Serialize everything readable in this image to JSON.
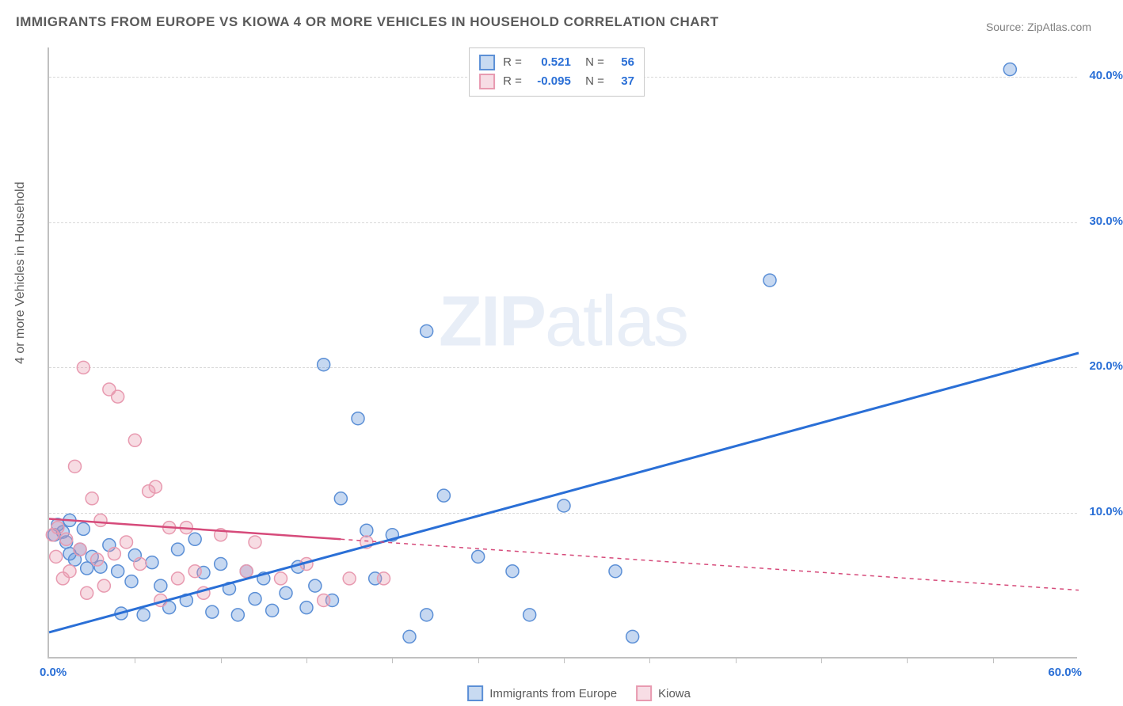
{
  "title": "IMMIGRANTS FROM EUROPE VS KIOWA 4 OR MORE VEHICLES IN HOUSEHOLD CORRELATION CHART",
  "source": "Source: ZipAtlas.com",
  "ylabel": "4 or more Vehicles in Household",
  "watermark_bold": "ZIP",
  "watermark_rest": "atlas",
  "chart": {
    "type": "scatter",
    "xlim": [
      0,
      60
    ],
    "ylim": [
      0,
      42
    ],
    "x_tick_start": 5,
    "x_tick_step": 5,
    "y_tick_start": 10,
    "y_tick_step": 10,
    "x_label_0": "0.0%",
    "x_label_end": "60.0%",
    "y_labels": [
      {
        "v": 10,
        "text": "10.0%"
      },
      {
        "v": 20,
        "text": "20.0%"
      },
      {
        "v": 30,
        "text": "30.0%"
      },
      {
        "v": 40,
        "text": "40.0%"
      }
    ],
    "background_color": "#ffffff",
    "grid_color": "#d8d8d8",
    "axis_color": "#c0c0c0",
    "marker_radius": 8,
    "marker_stroke_width": 1.5,
    "marker_fill_opacity": 0.35,
    "series": [
      {
        "name": "Immigrants from Europe",
        "color": "#5b8fd6",
        "line_color": "#2a6fd6",
        "R": "0.521",
        "N": "56",
        "trend": {
          "x1": 0,
          "y1": 1.8,
          "x2": 60,
          "y2": 21.0,
          "width": 3
        },
        "points": [
          [
            0.3,
            8.5
          ],
          [
            0.5,
            9.2
          ],
          [
            0.8,
            8.7
          ],
          [
            1.0,
            8.0
          ],
          [
            1.2,
            9.5
          ],
          [
            1.2,
            7.2
          ],
          [
            1.5,
            6.8
          ],
          [
            1.8,
            7.5
          ],
          [
            2.0,
            8.9
          ],
          [
            2.2,
            6.2
          ],
          [
            2.5,
            7.0
          ],
          [
            3.0,
            6.3
          ],
          [
            3.5,
            7.8
          ],
          [
            4.0,
            6.0
          ],
          [
            4.2,
            3.1
          ],
          [
            4.8,
            5.3
          ],
          [
            5.0,
            7.1
          ],
          [
            5.5,
            3.0
          ],
          [
            6.0,
            6.6
          ],
          [
            6.5,
            5.0
          ],
          [
            7.0,
            3.5
          ],
          [
            7.5,
            7.5
          ],
          [
            8.0,
            4.0
          ],
          [
            8.5,
            8.2
          ],
          [
            9.0,
            5.9
          ],
          [
            9.5,
            3.2
          ],
          [
            10.0,
            6.5
          ],
          [
            10.5,
            4.8
          ],
          [
            11.0,
            3.0
          ],
          [
            11.5,
            6.0
          ],
          [
            12.0,
            4.1
          ],
          [
            12.5,
            5.5
          ],
          [
            13.0,
            3.3
          ],
          [
            13.8,
            4.5
          ],
          [
            14.5,
            6.3
          ],
          [
            15.0,
            3.5
          ],
          [
            15.5,
            5.0
          ],
          [
            16.0,
            20.2
          ],
          [
            16.5,
            4.0
          ],
          [
            17.0,
            11.0
          ],
          [
            18.0,
            16.5
          ],
          [
            18.5,
            8.8
          ],
          [
            19.0,
            5.5
          ],
          [
            20.0,
            8.5
          ],
          [
            21.0,
            1.5
          ],
          [
            22.0,
            3.0
          ],
          [
            22.0,
            22.5
          ],
          [
            23.0,
            11.2
          ],
          [
            25.0,
            7.0
          ],
          [
            27.0,
            6.0
          ],
          [
            28.0,
            3.0
          ],
          [
            30.0,
            10.5
          ],
          [
            33.0,
            6.0
          ],
          [
            34.0,
            1.5
          ],
          [
            42.0,
            26.0
          ],
          [
            56.0,
            40.5
          ]
        ]
      },
      {
        "name": "Kiowa",
        "color": "#e89ab0",
        "line_color": "#d64a7a",
        "R": "-0.095",
        "N": "37",
        "trend": {
          "x1": 0,
          "y1": 9.6,
          "x2": 17,
          "y2": 8.2,
          "x3": 60,
          "y3": 4.7,
          "width": 2.5
        },
        "points": [
          [
            0.2,
            8.5
          ],
          [
            0.4,
            7.0
          ],
          [
            0.5,
            9.0
          ],
          [
            0.8,
            5.5
          ],
          [
            1.0,
            8.2
          ],
          [
            1.2,
            6.0
          ],
          [
            1.5,
            13.2
          ],
          [
            1.8,
            7.5
          ],
          [
            2.0,
            20.0
          ],
          [
            2.2,
            4.5
          ],
          [
            2.5,
            11.0
          ],
          [
            2.8,
            6.8
          ],
          [
            3.0,
            9.5
          ],
          [
            3.2,
            5.0
          ],
          [
            3.5,
            18.5
          ],
          [
            3.8,
            7.2
          ],
          [
            4.0,
            18.0
          ],
          [
            4.5,
            8.0
          ],
          [
            5.0,
            15.0
          ],
          [
            5.3,
            6.5
          ],
          [
            5.8,
            11.5
          ],
          [
            6.2,
            11.8
          ],
          [
            6.5,
            4.0
          ],
          [
            7.0,
            9.0
          ],
          [
            7.5,
            5.5
          ],
          [
            8.0,
            9.0
          ],
          [
            8.5,
            6.0
          ],
          [
            9.0,
            4.5
          ],
          [
            10.0,
            8.5
          ],
          [
            11.5,
            6.0
          ],
          [
            12.0,
            8.0
          ],
          [
            13.5,
            5.5
          ],
          [
            15.0,
            6.5
          ],
          [
            16.0,
            4.0
          ],
          [
            17.5,
            5.5
          ],
          [
            18.5,
            8.0
          ],
          [
            19.5,
            5.5
          ]
        ]
      }
    ],
    "stats_value_color": "#2a6fd6",
    "bottom_legend": [
      {
        "label": "Immigrants from Europe",
        "color": "#5b8fd6"
      },
      {
        "label": "Kiowa",
        "color": "#e89ab0"
      }
    ]
  }
}
